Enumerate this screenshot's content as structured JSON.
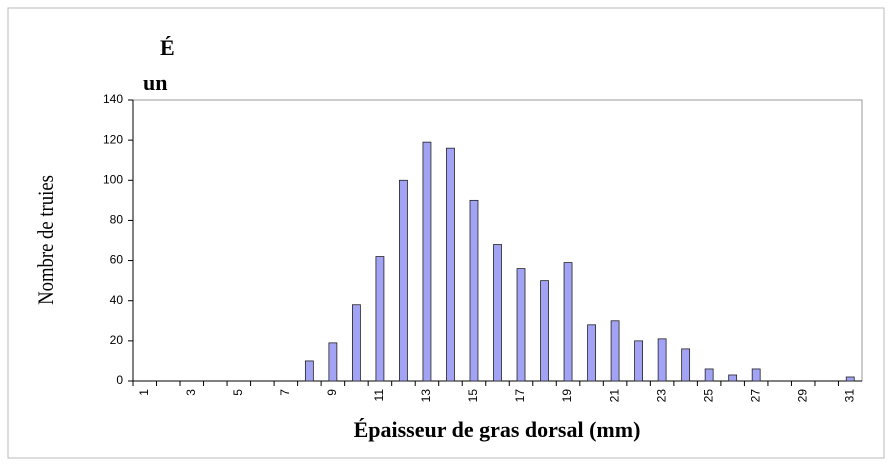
{
  "chart_data": {
    "type": "bar",
    "title_lines": [
      "É",
      "un"
    ],
    "x_label": "Épaisseur de gras dorsal (mm)",
    "y_label": "Nombre de truies",
    "categories": [
      1,
      null,
      3,
      null,
      5,
      null,
      7,
      null,
      9,
      null,
      11,
      null,
      13,
      null,
      15,
      null,
      17,
      null,
      19,
      null,
      21,
      null,
      23,
      null,
      25,
      null,
      27,
      null,
      29,
      null,
      31
    ],
    "values": [
      0,
      0,
      0,
      0,
      0,
      0,
      0,
      10,
      19,
      38,
      62,
      100,
      119,
      116,
      90,
      68,
      56,
      50,
      59,
      28,
      30,
      20,
      21,
      16,
      6,
      3,
      6,
      0,
      0,
      0,
      2
    ],
    "color": "#a3a3f5",
    "ylim": [
      0,
      140
    ],
    "yticks": [
      0,
      20,
      40,
      60,
      80,
      100,
      120,
      140
    ]
  }
}
